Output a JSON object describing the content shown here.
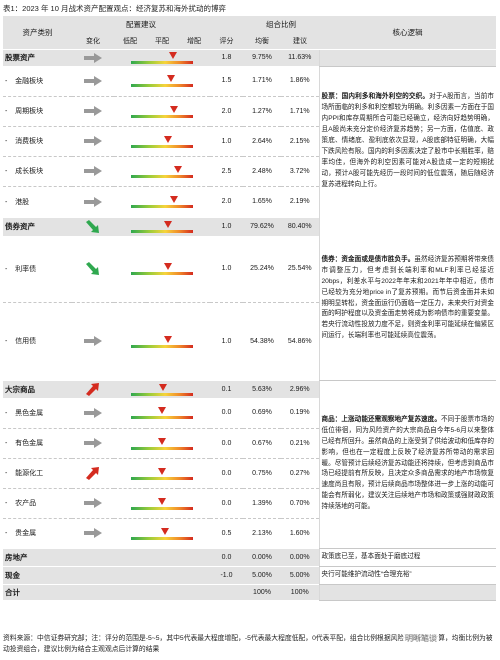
{
  "caption": "表1：2023 年 10 月战术资产配置观点：经济复苏和海外扰动的博弈",
  "header": {
    "asset_class": "资产类别",
    "allocation_advice": "配置建议",
    "portfolio_weight": "组合比例",
    "core_logic": "核心逻辑",
    "change": "变化",
    "low": "低配",
    "neutral": "平配",
    "over": "增配",
    "score": "评分",
    "equal_weight": "均衡",
    "advice": "建议"
  },
  "rows": [
    {
      "dash": "",
      "name": "股票资产",
      "arrow": "flat",
      "score": "1.8",
      "pos": 0.68,
      "eq": "9.75%",
      "adv": "11.63%"
    },
    {
      "dash": "-",
      "name": "金融板块",
      "arrow": "flat",
      "score": "1.5",
      "pos": 0.65,
      "eq": "1.71%",
      "adv": "1.86%"
    },
    {
      "dash": "-",
      "name": "周期板块",
      "arrow": "flat",
      "score": "2.0",
      "pos": 0.7,
      "eq": "1.27%",
      "adv": "1.71%"
    },
    {
      "dash": "-",
      "name": "消费板块",
      "arrow": "flat",
      "score": "1.0",
      "pos": 0.6,
      "eq": "2.64%",
      "adv": "2.15%"
    },
    {
      "dash": "-",
      "name": "成长板块",
      "arrow": "flat",
      "score": "2.5",
      "pos": 0.75,
      "eq": "2.48%",
      "adv": "3.72%"
    },
    {
      "dash": "-",
      "name": "港股",
      "arrow": "flat",
      "score": "2.0",
      "pos": 0.7,
      "eq": "1.65%",
      "adv": "2.19%"
    },
    {
      "dash": "",
      "name": "债券资产",
      "arrow": "down",
      "score": "1.0",
      "pos": 0.6,
      "eq": "79.62%",
      "adv": "80.40%"
    },
    {
      "dash": "-",
      "name": "利率债",
      "arrow": "down",
      "score": "1.0",
      "pos": 0.6,
      "eq": "25.24%",
      "adv": "25.54%"
    },
    {
      "dash": "-",
      "name": "信用债",
      "arrow": "flat",
      "score": "1.0",
      "pos": 0.6,
      "eq": "54.38%",
      "adv": "54.86%"
    },
    {
      "dash": "",
      "name": "大宗商品",
      "arrow": "up",
      "score": "0.1",
      "pos": 0.51,
      "eq": "5.63%",
      "adv": "2.96%"
    },
    {
      "dash": "-",
      "name": "黑色金属",
      "arrow": "flat",
      "score": "0.0",
      "pos": 0.5,
      "eq": "0.69%",
      "adv": "0.19%"
    },
    {
      "dash": "-",
      "name": "有色金属",
      "arrow": "flat",
      "score": "0.0",
      "pos": 0.5,
      "eq": "0.67%",
      "adv": "0.21%"
    },
    {
      "dash": "-",
      "name": "能源化工",
      "arrow": "up",
      "score": "0.0",
      "pos": 0.5,
      "eq": "0.75%",
      "adv": "0.27%"
    },
    {
      "dash": "-",
      "name": "农产品",
      "arrow": "flat",
      "score": "0.0",
      "pos": 0.5,
      "eq": "1.39%",
      "adv": "0.70%"
    },
    {
      "dash": "-",
      "name": "贵金属",
      "arrow": "flat",
      "score": "0.5",
      "pos": 0.55,
      "eq": "2.13%",
      "adv": "1.60%"
    },
    {
      "dash": "",
      "name": "房地产",
      "arrow": "",
      "score": "0.0",
      "pos": null,
      "eq": "0.00%",
      "adv": "0.00%"
    },
    {
      "dash": "",
      "name": "现金",
      "arrow": "",
      "score": "-1.0",
      "pos": null,
      "eq": "5.00%",
      "adv": "5.00%"
    },
    {
      "dash": "",
      "name": "合计",
      "arrow": "",
      "score": "",
      "pos": null,
      "eq": "100%",
      "adv": "100%"
    }
  ],
  "logic": {
    "stock_bold": "股票：国内利多和海外利空的交织。",
    "stock_text": "对于A股而言，当前市场所面临的利多和利空都较为明确。利多因素一方面在于国内PPI和库存周期所合可能已经确立，经济向好趋势明确，且A股尚未充分定价经济复苏趋势；另一方面，估值底、政策底、情绪底、盈利底依次显现，A股底部特征明确，大幅下跌风险有限。国内的利多因素决定了股市中长期胜率，赔率均佳，但海外的利空因素可能对A股造成一定的短期扰动，预计A股可能先经历一段时间的低位震荡，随后随经济复苏进程转向上行。",
    "bond_bold": "债券：资金面或是债市胜负手。",
    "bond_text": "虽然经济复苏预期将带来债市调整压力，但考虑到长端利率和MLF利率已经接近20bps，利差水平与2022年年末和2021年年中相近，债市已经较为充分地price in了复苏预期。而节后资金面并未如期明显转松，资金面运行仍面临一定压力，未来央行对资金面的呵护程度以及资金面走势将成为影响债市的重要变量。若央行流动性投放力度不足，则资金利率可能延续在偏紧区间运行，长端利率也可能延续高位震荡。",
    "commodity_bold": "商品：上涨动能还需观察地产复苏速度。",
    "commodity_text": "不同于股票市场的低位徘徊，同为风险资产的大宗商品自今年5-6月以来整体已经有所回升。虽然商品的上涨受到了供给波动和低库存的影响，但也在一定程度上反映了经济复苏所带动的需求回暖。尽管预计后续经济复苏动能还将持续，但考虑到商品市场已经提前有所反映，且决定众多商品需求的地产市场恢复速度尚且有限，预计后续商品市场整体进一步上涨的动能可能会有所弱化，建议关注后续地产市场和政策或强财政政策持续落地的可能。",
    "realestate": "政策底已至，基本面处于磨底过程",
    "cash": "央行可能维护流动性“合理充裕”"
  },
  "footer": "资料来源：中信证券研究部；注：评分的范围是-5~5，其中5代表最大程度增配，-5代表最大程度低配，0代表平配，组合比例根据风险预算模型计算，均衡比例为被动投资组合，建议比例为结合主观观点后计算的结果",
  "watermark": "明晰笔谈",
  "colors": {
    "gauge_pointer": "#d42b1f",
    "arrow": "#999999",
    "arrow_down": "#2fa84f",
    "arrow_up": "#d42b1f"
  }
}
